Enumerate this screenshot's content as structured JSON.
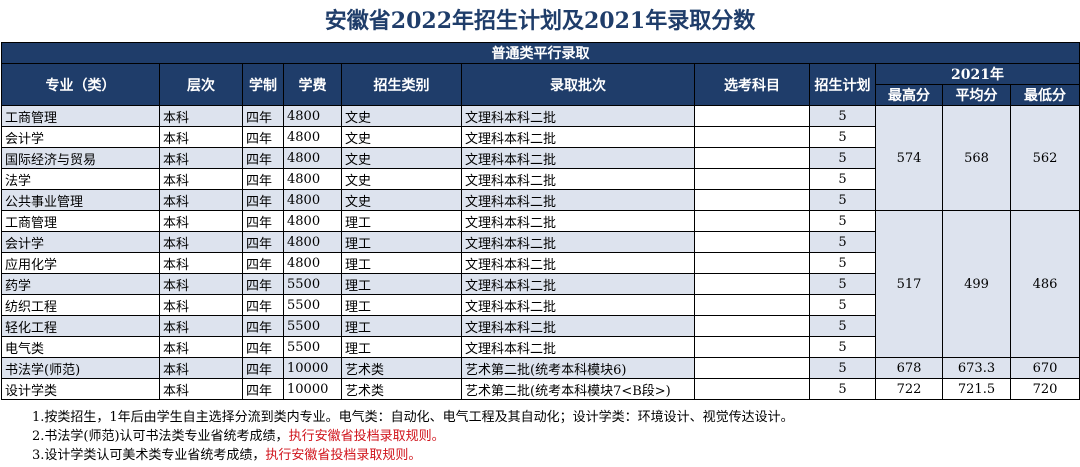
{
  "title": "安徽省2022年招生计划及2021年录取分数",
  "section": "普通类平行录取",
  "headers": {
    "major": "专业（类）",
    "level": "层次",
    "duration": "学制",
    "fee": "学费",
    "category": "招生类别",
    "batch": "录取批次",
    "subjects": "选考科目",
    "plan": "招生计划",
    "year": "2021年",
    "max": "最高分",
    "avg": "平均分",
    "min": "最低分"
  },
  "rows": [
    {
      "major": "工商管理",
      "level": "本科",
      "duration": "四年",
      "fee": "4800",
      "category": "文史",
      "batch": "文理科本科二批",
      "subjects": "",
      "plan": "5"
    },
    {
      "major": "会计学",
      "level": "本科",
      "duration": "四年",
      "fee": "4800",
      "category": "文史",
      "batch": "文理科本科二批",
      "subjects": "",
      "plan": "5"
    },
    {
      "major": "国际经济与贸易",
      "level": "本科",
      "duration": "四年",
      "fee": "4800",
      "category": "文史",
      "batch": "文理科本科二批",
      "subjects": "",
      "plan": "5"
    },
    {
      "major": "法学",
      "level": "本科",
      "duration": "四年",
      "fee": "4800",
      "category": "文史",
      "batch": "文理科本科二批",
      "subjects": "",
      "plan": "5"
    },
    {
      "major": "公共事业管理",
      "level": "本科",
      "duration": "四年",
      "fee": "4800",
      "category": "文史",
      "batch": "文理科本科二批",
      "subjects": "",
      "plan": "5"
    },
    {
      "major": "工商管理",
      "level": "本科",
      "duration": "四年",
      "fee": "4800",
      "category": "理工",
      "batch": "文理科本科二批",
      "subjects": "",
      "plan": "5"
    },
    {
      "major": "会计学",
      "level": "本科",
      "duration": "四年",
      "fee": "4800",
      "category": "理工",
      "batch": "文理科本科二批",
      "subjects": "",
      "plan": "5"
    },
    {
      "major": "应用化学",
      "level": "本科",
      "duration": "四年",
      "fee": "4800",
      "category": "理工",
      "batch": "文理科本科二批",
      "subjects": "",
      "plan": "5"
    },
    {
      "major": "药学",
      "level": "本科",
      "duration": "四年",
      "fee": "5500",
      "category": "理工",
      "batch": "文理科本科二批",
      "subjects": "",
      "plan": "5"
    },
    {
      "major": "纺织工程",
      "level": "本科",
      "duration": "四年",
      "fee": "5500",
      "category": "理工",
      "batch": "文理科本科二批",
      "subjects": "",
      "plan": "5"
    },
    {
      "major": "轻化工程",
      "level": "本科",
      "duration": "四年",
      "fee": "5500",
      "category": "理工",
      "batch": "文理科本科二批",
      "subjects": "",
      "plan": "5"
    },
    {
      "major": "电气类",
      "level": "本科",
      "duration": "四年",
      "fee": "5500",
      "category": "理工",
      "batch": "文理科本科二批",
      "subjects": "",
      "plan": "5"
    },
    {
      "major": "书法学(师范)",
      "level": "本科",
      "duration": "四年",
      "fee": "10000",
      "category": "艺术类",
      "batch": "艺术第二批(统考本科模块6)",
      "subjects": "",
      "plan": "5"
    },
    {
      "major": "设计学类",
      "level": "本科",
      "duration": "四年",
      "fee": "10000",
      "category": "艺术类",
      "batch": "艺术第二批(统考本科模块7<B段>)",
      "subjects": "",
      "plan": "5"
    }
  ],
  "scores": [
    {
      "max": "574",
      "avg": "568",
      "min": "562"
    },
    {
      "max": "517",
      "avg": "499",
      "min": "486"
    },
    {
      "max": "678",
      "avg": "673.3",
      "min": "670"
    },
    {
      "max": "722",
      "avg": "721.5",
      "min": "720"
    }
  ],
  "notes": [
    {
      "text": "1.按类招生，1年后由学生自主选择分流到类内专业。电气类：自动化、电气工程及其自动化；设计学类：环境设计、视觉传达设计。",
      "red": ""
    },
    {
      "text": "2.书法学(师范)认可书法类专业省统考成绩，",
      "red": "执行安徽省投档录取规则。"
    },
    {
      "text": "3.设计学类认可美术类专业省统考成绩，",
      "red": "执行安徽省投档录取规则。"
    }
  ]
}
